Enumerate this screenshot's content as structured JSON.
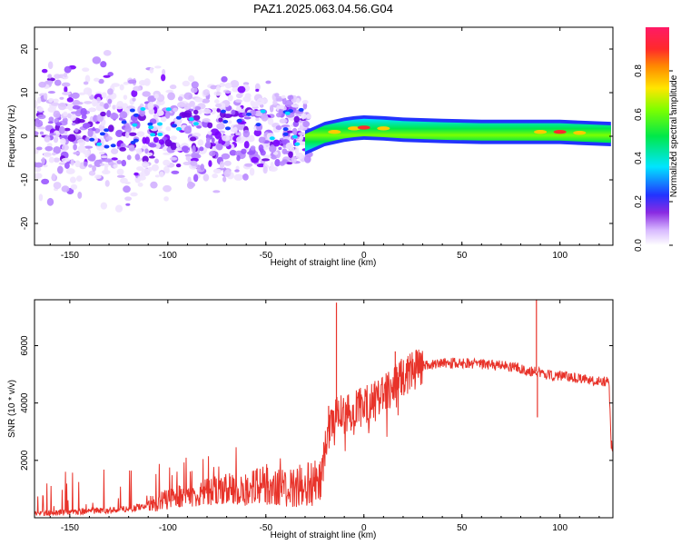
{
  "title": "PAZ1.2025.063.04.56.G04",
  "colors": {
    "snr_line": "#e8332a",
    "spectrogram_core": "#7a00ff",
    "band_green": "#00e84a",
    "band_red": "#ff2a2a",
    "colorbar_top": "#ff1a66",
    "colorbar_bottom": "#ffffff"
  },
  "colorbar": {
    "label": "Normalized spectral amplitude",
    "ticks": [
      "0.0",
      "0.2",
      "0.4",
      "0.6",
      "0.8"
    ]
  },
  "chart_data": [
    {
      "type": "heatmap",
      "title": "PAZ1.2025.063.04.56.G04",
      "xlabel": "Height of straight line (km)",
      "ylabel": "Frequency (Hz)",
      "xlim": [
        -168,
        127
      ],
      "ylim": [
        -25,
        25
      ],
      "xticks": [
        -150,
        -100,
        -50,
        0,
        50,
        100
      ],
      "xtick_labels": [
        "-150",
        "-100",
        "-50",
        "0",
        "50",
        "100"
      ],
      "yticks": [
        -20,
        -10,
        0,
        10,
        20
      ],
      "ytick_labels": [
        "-20",
        "-10",
        "0",
        "10",
        "20"
      ],
      "zlim": [
        0,
        1
      ],
      "colormap": "white-violet-blue-cyan-green-yellow-red-pink",
      "band": [
        {
          "x": -30,
          "f": -1.5,
          "amp": 0.25
        },
        {
          "x": -25,
          "f": -0.5,
          "amp": 0.45
        },
        {
          "x": -20,
          "f": 0.5,
          "amp": 0.55
        },
        {
          "x": -15,
          "f": 1.0,
          "amp": 0.8
        },
        {
          "x": -10,
          "f": 1.5,
          "amp": 0.75
        },
        {
          "x": -5,
          "f": 1.8,
          "amp": 0.85
        },
        {
          "x": 0,
          "f": 2.0,
          "amp": 0.9
        },
        {
          "x": 10,
          "f": 1.8,
          "amp": 0.85
        },
        {
          "x": 20,
          "f": 1.5,
          "amp": 0.7
        },
        {
          "x": 40,
          "f": 1.2,
          "amp": 0.65
        },
        {
          "x": 60,
          "f": 1.0,
          "amp": 0.75
        },
        {
          "x": 80,
          "f": 1.0,
          "amp": 0.7
        },
        {
          "x": 90,
          "f": 1.0,
          "amp": 0.85
        },
        {
          "x": 100,
          "f": 1.0,
          "amp": 0.95
        },
        {
          "x": 110,
          "f": 0.8,
          "amp": 0.8
        },
        {
          "x": 126,
          "f": 0.5,
          "amp": 0.7
        }
      ]
    },
    {
      "type": "line",
      "xlabel": "Height of straight line (km)",
      "ylabel": "SNR (10 * v/v)",
      "xlim": [
        -168,
        127
      ],
      "ylim": [
        0,
        7600
      ],
      "xticks": [
        -150,
        -100,
        -50,
        0,
        50,
        100
      ],
      "xtick_labels": [
        "-150",
        "-100",
        "-50",
        "0",
        "50",
        "100"
      ],
      "yticks": [
        2000,
        4000,
        6000
      ],
      "ytick_labels": [
        "2000",
        "4000",
        "6000"
      ],
      "grid": false,
      "series": [
        {
          "x": [
            -168,
            -160,
            -150,
            -140,
            -130,
            -120,
            -110,
            -100,
            -90,
            -80,
            -70,
            -60,
            -50,
            -40,
            -30,
            -22,
            -20,
            -18,
            -16,
            -14,
            -12,
            -10,
            -5,
            0,
            5,
            10,
            15,
            20,
            25,
            30,
            35,
            40,
            50,
            60,
            70,
            80,
            85,
            88,
            90,
            95,
            100,
            110,
            120,
            125,
            126,
            127
          ],
          "y": [
            150,
            150,
            200,
            250,
            250,
            300,
            450,
            650,
            800,
            900,
            1000,
            1000,
            1100,
            1100,
            1150,
            1200,
            2200,
            3000,
            3500,
            3800,
            3700,
            3600,
            3700,
            3900,
            4100,
            4300,
            4600,
            4900,
            5100,
            5300,
            5350,
            5400,
            5400,
            5350,
            5300,
            5200,
            5100,
            5100,
            5050,
            4950,
            4950,
            4850,
            4750,
            4750,
            2600,
            2400
          ]
        }
      ],
      "spikes": [
        {
          "x": -14,
          "y": 7500
        },
        {
          "x": -18,
          "y": 3900
        },
        {
          "x": 16,
          "y": 5800
        },
        {
          "x": 88,
          "y": 7600
        },
        {
          "x": 88.5,
          "y": 3500
        }
      ]
    }
  ]
}
